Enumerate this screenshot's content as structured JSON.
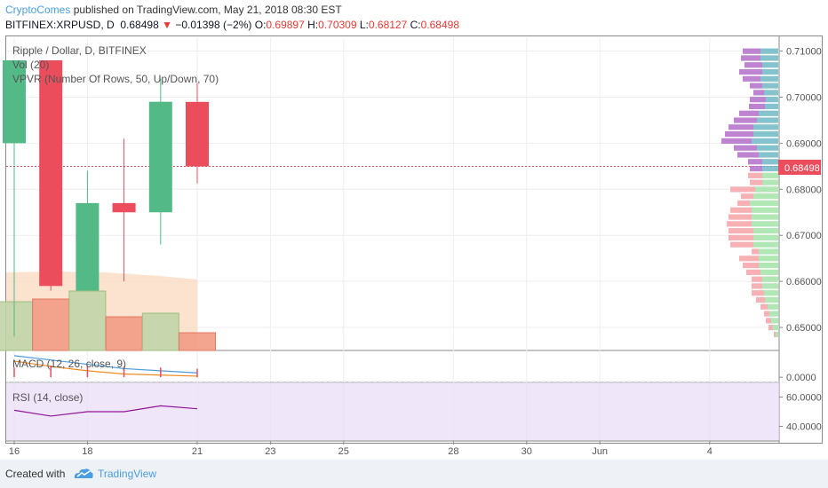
{
  "header": {
    "publisher": "CryptoComes",
    "published_text": "published on TradingView.com, May 21, 2018 08:30 EST",
    "symbol": "BITFINEX:XRPUSD, D",
    "last": "0.68498",
    "change": "−0.01398 (−2%)",
    "o_label": "O:",
    "o_value": "0.69897",
    "h_label": "H:",
    "h_value": "0.70309",
    "l_label": "L:",
    "l_value": "0.68127",
    "c_label": "C:",
    "c_value": "0.68498"
  },
  "legend": {
    "title": "Ripple / Dollar, D, BITFINEX",
    "vol": "Vol (20)",
    "vpvr": "VPVR (Number Of Rows, 50, Up/Down, 70)",
    "macd": "MACD (12, 26, close, 9)",
    "rsi": "RSI (14, close)"
  },
  "last_price_label": "0.68498",
  "footer": {
    "created_with": "Created with",
    "brand": "TradingView"
  },
  "colors": {
    "up": "#53b987",
    "down": "#eb4d5c",
    "vol_up": "#c2d4a8",
    "vol_down": "#f29b84",
    "vpvr_up": "#6fb8c4",
    "vpvr_down": "#b36fc9"
  },
  "chart_data": {
    "type": "candlestick",
    "price_axis": {
      "min": 0.645,
      "max": 0.713,
      "ticks": [
        "0.71000",
        "0.70000",
        "0.69000",
        "0.68000",
        "0.67000",
        "0.66000",
        "0.65000"
      ]
    },
    "x_ticks": [
      "16",
      "18",
      "21",
      "23",
      "25",
      "28",
      "30",
      "Jun",
      "4"
    ],
    "candles": [
      {
        "date": "May 16",
        "open": 0.69,
        "high": 0.708,
        "low": 0.648,
        "close": 0.708
      },
      {
        "date": "May 17",
        "open": 0.708,
        "high": 0.708,
        "low": 0.658,
        "close": 0.659
      },
      {
        "date": "May 18",
        "open": 0.658,
        "high": 0.684,
        "low": 0.658,
        "close": 0.677
      },
      {
        "date": "May 19",
        "open": 0.677,
        "high": 0.691,
        "low": 0.66,
        "close": 0.675
      },
      {
        "date": "May 20",
        "open": 0.675,
        "high": 0.704,
        "low": 0.668,
        "close": 0.699
      },
      {
        "date": "May 21",
        "open": 0.69897,
        "high": 0.70309,
        "low": 0.68127,
        "close": 0.68498
      }
    ],
    "volume": [
      0.55,
      0.58,
      0.67,
      0.38,
      0.42,
      0.2
    ],
    "vpvr": {
      "prices": [
        0.71,
        0.7085,
        0.707,
        0.7055,
        0.704,
        0.7025,
        0.701,
        0.6995,
        0.698,
        0.6965,
        0.695,
        0.6935,
        0.692,
        0.6905,
        0.689,
        0.6875,
        0.686,
        0.6845,
        0.683,
        0.6815,
        0.68,
        0.6785,
        0.677,
        0.6755,
        0.674,
        0.6725,
        0.671,
        0.6695,
        0.668,
        0.6665,
        0.665,
        0.6635,
        0.662,
        0.6605,
        0.659,
        0.6575,
        0.656,
        0.6545,
        0.653,
        0.6515,
        0.65,
        0.6485
      ],
      "up": [
        20,
        20,
        18,
        18,
        20,
        18,
        16,
        14,
        15,
        22,
        24,
        28,
        28,
        30,
        24,
        22,
        18,
        18,
        18,
        18,
        26,
        28,
        32,
        30,
        30,
        30,
        28,
        28,
        28,
        22,
        22,
        22,
        20,
        18,
        18,
        16,
        15,
        12,
        10,
        8,
        6,
        3
      ],
      "down": [
        20,
        22,
        20,
        26,
        20,
        14,
        12,
        18,
        18,
        22,
        26,
        28,
        32,
        34,
        26,
        24,
        16,
        14,
        16,
        14,
        28,
        14,
        14,
        24,
        26,
        28,
        28,
        28,
        26,
        8,
        22,
        18,
        16,
        12,
        12,
        14,
        10,
        8,
        6,
        6,
        5,
        2
      ]
    },
    "macd": {
      "macd": [
        0.002,
        0.0016,
        0.0012,
        0.0008,
        0.0006,
        0.0004
      ],
      "signal": [
        0.0015,
        0.001,
        0.0006,
        0.0003,
        0.0002,
        0.0001
      ],
      "hist": [
        0.0004,
        0.0006,
        0.0006,
        0.0005,
        0.0004,
        0.0003
      ],
      "ticks": [
        "0.0000"
      ]
    },
    "rsi": {
      "values": [
        51.0,
        47.0,
        50.0,
        50.0,
        54.0,
        52.0
      ],
      "range": [
        30,
        70
      ],
      "ticks": [
        "60.0000",
        "40.0000"
      ]
    }
  }
}
